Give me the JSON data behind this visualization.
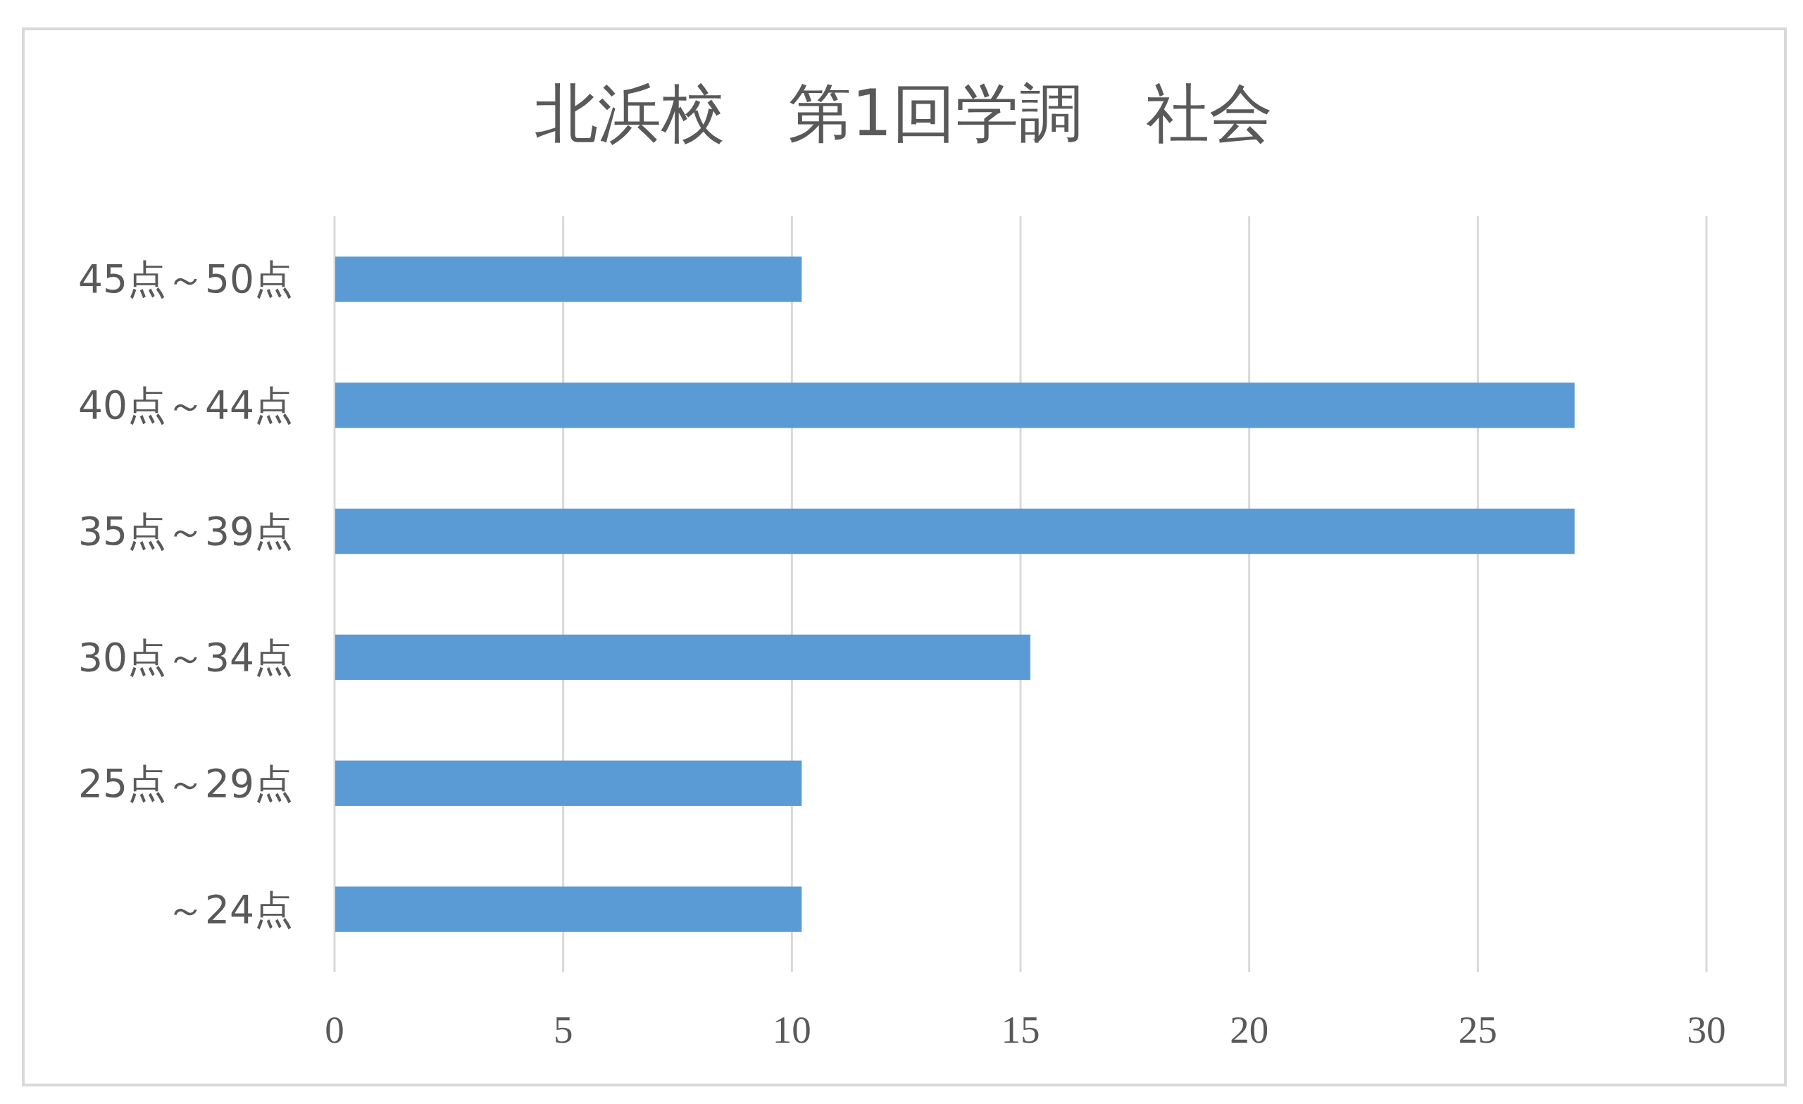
{
  "chart_data": {
    "type": "bar",
    "orientation": "horizontal",
    "title": "北浜校　第1回学調　社会",
    "categories": [
      "45点～50点",
      "40点～44点",
      "35点～39点",
      "30点～34点",
      "25点～29点",
      "～24点"
    ],
    "values": [
      10.2,
      27.1,
      27.1,
      15.2,
      10.2,
      10.2
    ],
    "color": "#5b9bd5",
    "xlim": [
      0,
      30
    ],
    "xticks": [
      0,
      5,
      10,
      15,
      20,
      25,
      30
    ],
    "grid": "x"
  }
}
